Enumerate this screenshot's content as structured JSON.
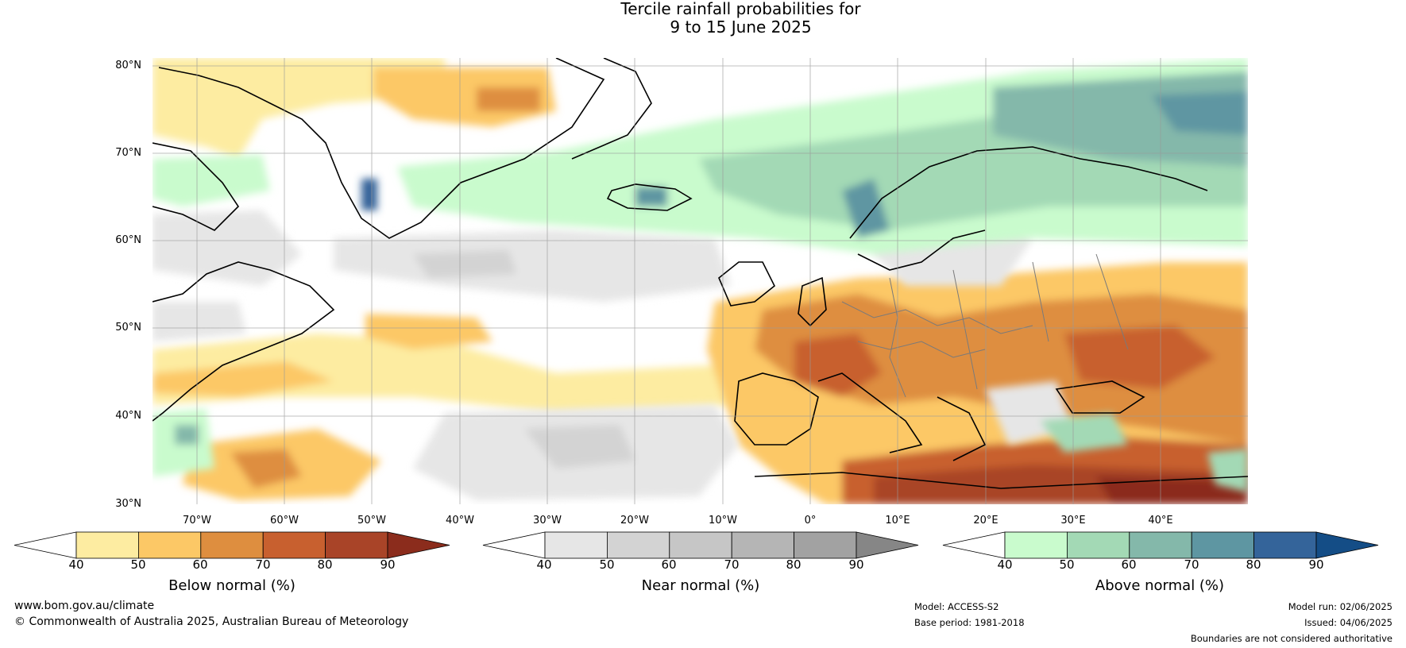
{
  "title": {
    "line1": "Tercile rainfall probabilities for",
    "line2": "9 to 15 June 2025"
  },
  "latitude_labels": [
    "80°N",
    "70°N",
    "60°N",
    "50°N",
    "40°N",
    "30°N"
  ],
  "longitude_labels": [
    "70°W",
    "60°W",
    "50°W",
    "40°W",
    "30°W",
    "20°W",
    "10°W",
    "0°",
    "10°E",
    "20°E",
    "30°E",
    "40°E"
  ],
  "colorbars": [
    {
      "title": "Below normal (%)",
      "ticks": [
        "40",
        "50",
        "60",
        "70",
        "80",
        "90"
      ],
      "colors": [
        "#ffffff",
        "#fdeca1",
        "#fcc866",
        "#de8e3f",
        "#c8602f",
        "#a94428",
        "#8b2c1c"
      ]
    },
    {
      "title": "Near normal (%)",
      "ticks": [
        "40",
        "50",
        "60",
        "70",
        "80",
        "90"
      ],
      "colors": [
        "#ffffff",
        "#e6e6e6",
        "#d3d3d3",
        "#c6c6c6",
        "#b5b5b5",
        "#a2a2a2",
        "#868686"
      ]
    },
    {
      "title": "Above normal (%)",
      "ticks": [
        "40",
        "50",
        "60",
        "70",
        "80",
        "90"
      ],
      "colors": [
        "#ffffff",
        "#c9fbcd",
        "#a3d9b5",
        "#84b8aa",
        "#5e96a2",
        "#34649a",
        "#144d86"
      ]
    }
  ],
  "footer": {
    "website": "www.bom.gov.au/climate",
    "copyright": "© Commonwealth of Australia 2025, Australian Bureau of Meteorology",
    "model": "Model: ACCESS-S2",
    "base_period": "Base period: 1981-2018",
    "model_run": "Model run: 02/06/2025",
    "issued": "Issued: 04/06/2025",
    "disclaimer": "Boundaries are not considered authoritative"
  }
}
